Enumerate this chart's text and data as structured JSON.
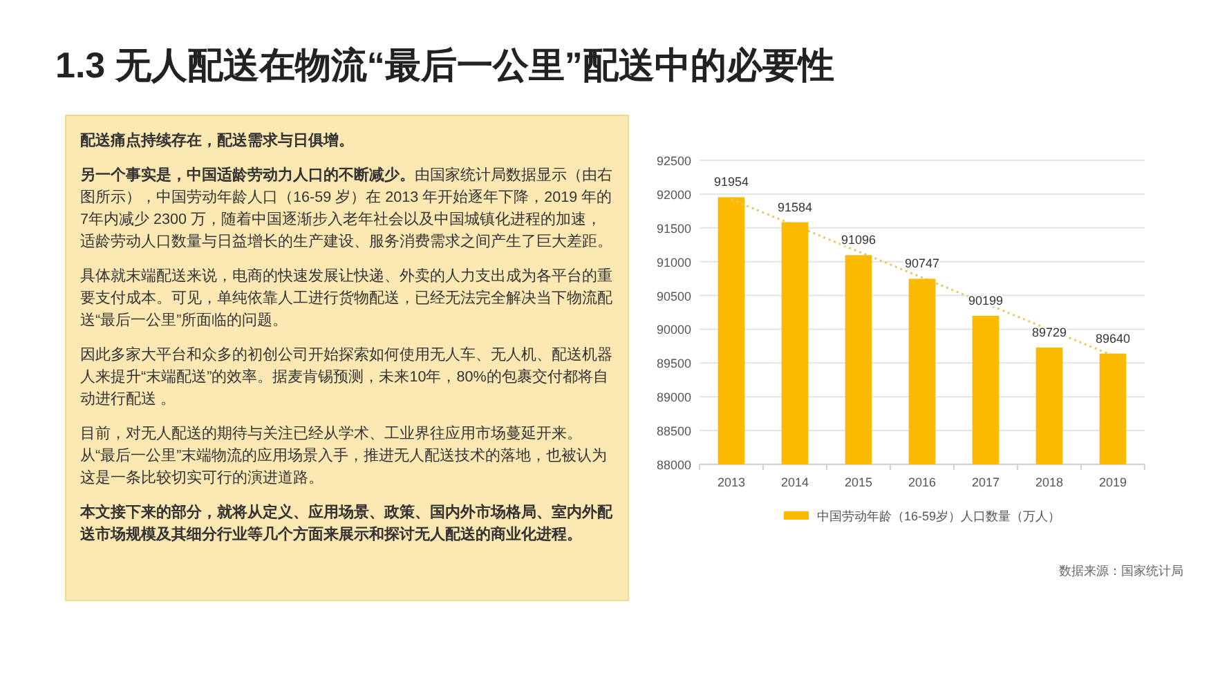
{
  "chart_data": [
    {
      "type": "other",
      "title": "1.3 无人配送在物流“最后一公里”配送中的必要性",
      "annotations": [
        "配送痛点持续存在，配送需求与日俱增。",
        "另一个事实是，中国适龄劳动力人口的不断减少。",
        "由国家统计局数据显示（由右图所示），中国劳动年龄人口（16-59 岁）在 2013 年开始逐年下降，2019 年的7年内减少 2300 万，随着中国逐渐步入老年社会以及中国城镇化进程的加速，适龄劳动人口数量与日益增长的生产建设、服务消费需求之间产生了巨大差距。",
        "具体就末端配送来说，电商的快速发展让快递、外卖的人力支出成为各平台的重要支付成本。可见，单纯依靠人工进行货物配送，已经无法完全解决当下物流配送“最后一公里”所面临的问题。",
        "因此多家大平台和众多的初创公司开始探索如何使用无人车、无人机、配送机器人来提升“末端配送”的效率。据麦肯锡预测，未来10年，80%的包裹交付都将自动进行配送 。",
        "目前，对无人配送的期待与关注已经从学术、工业界往应用市场蔓延开来。从“最后一公里”末端物流的应用场景入手，推进无人配送技术的落地，也被认为这是一条比较切实可行的演进道路。",
        "本文接下来的部分，就将从定义、应用场景、政策、国内外市场格局、室内外配送市场规模及其细分行业等几个方面来展示和探讨无人配送的商业化进程。"
      ]
    },
    {
      "type": "bar",
      "categories": [
        "2013",
        "2014",
        "2015",
        "2016",
        "2017",
        "2018",
        "2019"
      ],
      "series": [
        {
          "name": "中国劳动年龄（16-59岁）人口数量（万人）",
          "color": "#fbb900",
          "values": [
            91954,
            91584,
            91096,
            90747,
            90199,
            89729,
            89640
          ],
          "value_labels": [
            "91954",
            "91584",
            "91096",
            "90747",
            "90199",
            "89729",
            "89640"
          ]
        },
        {
          "type": "line",
          "color": "#e8c860",
          "line_style": "dotted",
          "values": [
            91920,
            91535,
            91150,
            90765,
            90380,
            89995,
            89610
          ]
        }
      ],
      "ylim": [
        88000,
        92500
      ],
      "yticks": [
        88000,
        88500,
        89000,
        89500,
        90000,
        90500,
        91000,
        91500,
        92000,
        92500
      ],
      "grid": "y",
      "legend": "bottom",
      "annotations": [
        "数据来源：国家统计局"
      ]
    }
  ]
}
